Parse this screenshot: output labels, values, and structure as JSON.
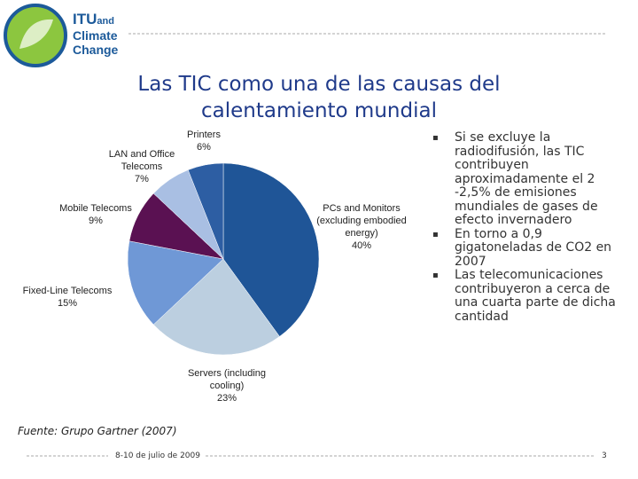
{
  "header": {
    "logo_lines": [
      "ITU",
      "and",
      "Climate",
      "Change"
    ]
  },
  "title": "Las TIC como una de las causas del calentamiento mundial",
  "chart_data": {
    "type": "pie",
    "categories": [
      "PCs and Monitors (excluding embodied energy)",
      "Servers (including cooling)",
      "Fixed-Line Telecoms",
      "Mobile Telecoms",
      "LAN and Office Telecoms",
      "Printers"
    ],
    "values": [
      40,
      23,
      15,
      9,
      7,
      6
    ],
    "value_labels": [
      "40%",
      "23%",
      "15%",
      "9%",
      "7%",
      "6%"
    ],
    "colors": [
      "#1f5597",
      "#bccfe0",
      "#6f98d6",
      "#5a1152",
      "#a9bfe3",
      "#2d5ea3"
    ]
  },
  "bullets": [
    "Si se excluye la radiodifusión, las TIC contribuyen aproximadamente el 2 -2,5% de emisiones mundiales de gases de efecto invernadero",
    "En torno a 0,9 gigatoneladas de CO2 en 2007",
    "Las telecomunicaciones contribuyeron a cerca de una cuarta parte de dicha cantidad"
  ],
  "source": "Fuente: Grupo Gartner (2007)",
  "footer": {
    "date": "8-10 de julio de 2009",
    "page": "3"
  }
}
